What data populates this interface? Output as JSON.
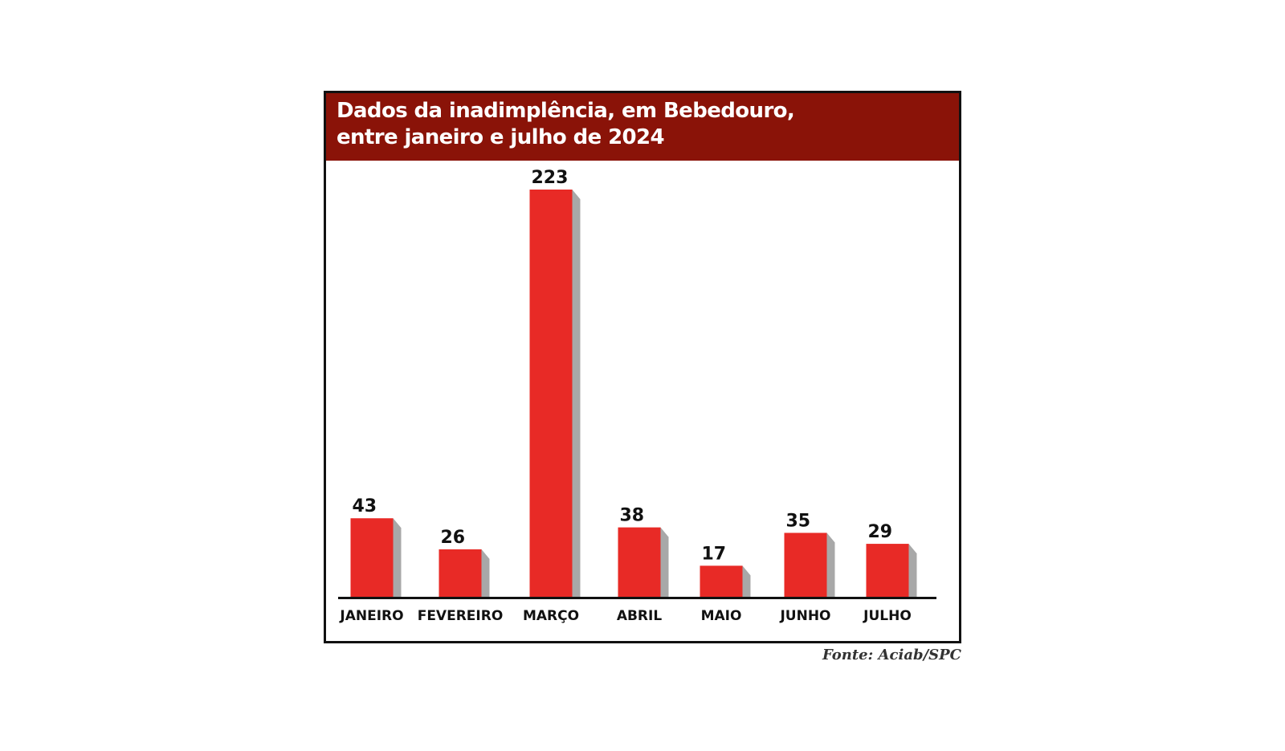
{
  "title_lines": [
    "Dados da inadimplência, em Bebedouro,",
    "entre janeiro e julho de 2024"
  ],
  "source": "Fonte: Aciab/SPC",
  "colors": {
    "title_bar": "#8a1308",
    "bar": "#e82a26",
    "bar_shadow": "#a8a8a8",
    "axis": "#111111"
  },
  "chart_data": {
    "type": "bar",
    "title": "Dados da inadimplência, em Bebedouro, entre janeiro e julho de 2024",
    "categories": [
      "JANEIRO",
      "FEVEREIRO",
      "MARÇO",
      "ABRIL",
      "MAIO",
      "JUNHO",
      "JULHO"
    ],
    "values": [
      43,
      26,
      223,
      38,
      17,
      35,
      29
    ],
    "xlabel": "",
    "ylabel": "",
    "ylim": [
      0,
      223
    ],
    "grid": false,
    "data_labels": true
  }
}
